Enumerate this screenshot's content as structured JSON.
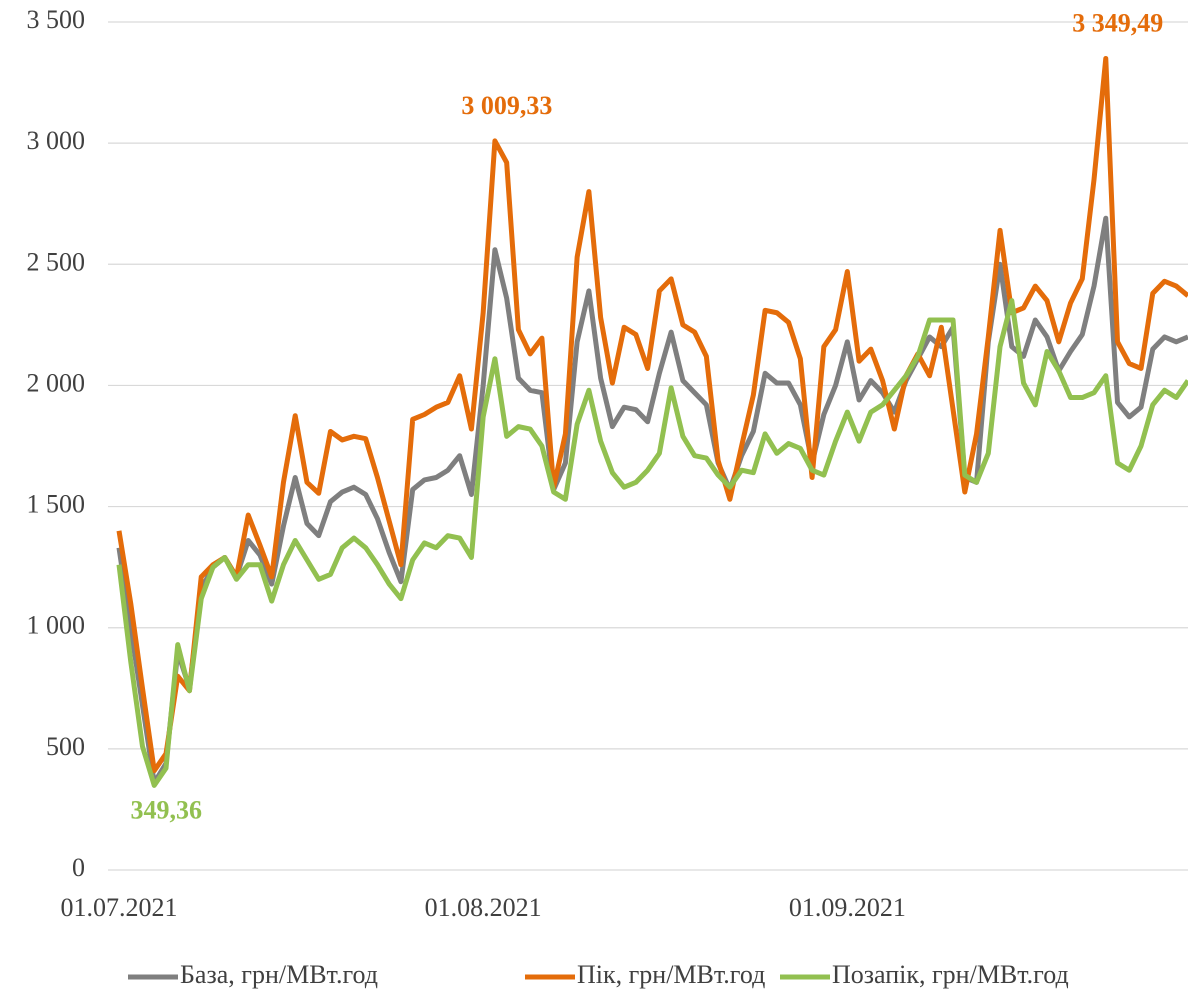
{
  "chart_data": {
    "type": "line",
    "categories": [
      "01.07.2021",
      null,
      null,
      null,
      null,
      null,
      null,
      null,
      null,
      null,
      null,
      null,
      null,
      null,
      null,
      null,
      null,
      null,
      null,
      null,
      null,
      null,
      null,
      null,
      null,
      null,
      null,
      null,
      null,
      null,
      null,
      "01.08.2021",
      null,
      null,
      null,
      null,
      null,
      null,
      null,
      null,
      null,
      null,
      null,
      null,
      null,
      null,
      null,
      null,
      null,
      null,
      null,
      null,
      null,
      null,
      null,
      null,
      null,
      null,
      null,
      null,
      null,
      null,
      "01.09.2021",
      null,
      null,
      null,
      null,
      null,
      null,
      null,
      null,
      null,
      null,
      null,
      null,
      null,
      null,
      null,
      null,
      null,
      null,
      null,
      null,
      null,
      null,
      null,
      null,
      null,
      null,
      null,
      null,
      null
    ],
    "series": [
      {
        "name": "База, грн/МВт.год",
        "color": "#7f7f7f",
        "values": [
          1330,
          1000,
          680,
          360,
          440,
          900,
          750,
          1160,
          1250,
          1290,
          1210,
          1360,
          1300,
          1180,
          1420,
          1620,
          1430,
          1380,
          1520,
          1560,
          1580,
          1550,
          1450,
          1310,
          1190,
          1570,
          1610,
          1620,
          1650,
          1710,
          1550,
          2000,
          2560,
          2360,
          2030,
          1980,
          1970,
          1570,
          1680,
          2180,
          2390,
          2030,
          1830,
          1910,
          1900,
          1850,
          2050,
          2220,
          2020,
          1970,
          1920,
          1680,
          1570,
          1710,
          1810,
          2050,
          2010,
          2010,
          1920,
          1680,
          1880,
          2000,
          2180,
          1940,
          2020,
          1970,
          1890,
          2020,
          2110,
          2200,
          2160,
          2240,
          1620,
          1600,
          2180,
          2500,
          2160,
          2120,
          2270,
          2200,
          2060,
          2140,
          2210,
          2410,
          2690,
          1930,
          1870,
          1910,
          2150,
          2200,
          2180,
          2200
        ]
      },
      {
        "name": "Пік, грн/МВт.год",
        "color": "#e46c0a",
        "values": [
          1400,
          1100,
          750,
          410,
          480,
          800,
          740,
          1210,
          1260,
          1290,
          1210,
          1465,
          1340,
          1210,
          1600,
          1875,
          1600,
          1555,
          1810,
          1775,
          1790,
          1780,
          1620,
          1440,
          1260,
          1860,
          1880,
          1910,
          1930,
          2040,
          1820,
          2300,
          3009.33,
          2920,
          2230,
          2130,
          2195,
          1580,
          1800,
          2530,
          2800,
          2280,
          2010,
          2240,
          2210,
          2070,
          2390,
          2440,
          2250,
          2220,
          2120,
          1690,
          1530,
          1750,
          1960,
          2310,
          2300,
          2260,
          2110,
          1620,
          2160,
          2230,
          2470,
          2100,
          2150,
          2020,
          1820,
          2040,
          2130,
          2040,
          2240,
          1900,
          1560,
          1800,
          2200,
          2640,
          2300,
          2320,
          2410,
          2350,
          2180,
          2340,
          2440,
          2850,
          3349.49,
          2180,
          2090,
          2070,
          2380,
          2430,
          2410,
          2370
        ],
        "value_labels": [
          null,
          null,
          null,
          null,
          null,
          null,
          null,
          null,
          null,
          null,
          null,
          null,
          null,
          null,
          null,
          null,
          null,
          null,
          null,
          null,
          null,
          null,
          null,
          null,
          null,
          null,
          null,
          null,
          null,
          null,
          null,
          null,
          "3 009,33",
          null,
          null,
          null,
          null,
          null,
          null,
          null,
          null,
          null,
          null,
          null,
          null,
          null,
          null,
          null,
          null,
          null,
          null,
          null,
          null,
          null,
          null,
          null,
          null,
          null,
          null,
          null,
          null,
          null,
          null,
          null,
          null,
          null,
          null,
          null,
          null,
          null,
          null,
          null,
          null,
          null,
          null,
          null,
          null,
          null,
          null,
          null,
          null,
          null,
          null,
          null,
          "3 349,49",
          null,
          null,
          null,
          null,
          null,
          null,
          null
        ]
      },
      {
        "name": "Позапік, грн/МВт.год",
        "color": "#92c050",
        "values": [
          1260,
          860,
          510,
          349.36,
          420,
          930,
          740,
          1120,
          1250,
          1290,
          1200,
          1260,
          1260,
          1110,
          1260,
          1360,
          1280,
          1200,
          1220,
          1330,
          1370,
          1330,
          1260,
          1180,
          1120,
          1280,
          1350,
          1330,
          1380,
          1370,
          1290,
          1870,
          2110,
          1790,
          1830,
          1820,
          1750,
          1560,
          1530,
          1840,
          1980,
          1770,
          1640,
          1580,
          1600,
          1650,
          1720,
          1990,
          1790,
          1710,
          1700,
          1630,
          1580,
          1650,
          1640,
          1800,
          1720,
          1760,
          1740,
          1650,
          1630,
          1770,
          1890,
          1770,
          1890,
          1920,
          1980,
          2040,
          2120,
          2270,
          2270,
          2270,
          1630,
          1600,
          1720,
          2160,
          2350,
          2010,
          1920,
          2140,
          2060,
          1950,
          1950,
          1970,
          2040,
          1680,
          1650,
          1750,
          1920,
          1980,
          1950,
          2020
        ],
        "value_labels": [
          null,
          null,
          null,
          "349,36",
          null,
          null,
          null,
          null,
          null,
          null,
          null,
          null,
          null,
          null,
          null,
          null,
          null,
          null,
          null,
          null,
          null,
          null,
          null,
          null,
          null,
          null,
          null,
          null,
          null,
          null,
          null,
          null,
          null,
          null,
          null,
          null,
          null,
          null,
          null,
          null,
          null,
          null,
          null,
          null,
          null,
          null,
          null,
          null,
          null,
          null,
          null,
          null,
          null,
          null,
          null,
          null,
          null,
          null,
          null,
          null,
          null,
          null,
          null,
          null,
          null,
          null,
          null,
          null,
          null,
          null,
          null,
          null,
          null,
          null,
          null,
          null,
          null,
          null,
          null,
          null,
          null,
          null,
          null,
          null,
          null,
          null,
          null,
          null,
          null,
          null,
          null,
          null
        ]
      }
    ],
    "ylim": [
      0,
      3500
    ],
    "yticks": [
      0,
      500,
      {
        "value": 1000,
        "label": "1 000"
      },
      {
        "value": 1500,
        "label": "1 500"
      },
      {
        "value": 2000,
        "label": "2 000"
      },
      {
        "value": 2500,
        "label": "2 500"
      },
      {
        "value": 3000,
        "label": "3 000"
      },
      {
        "value": 3500,
        "label": "3 500"
      }
    ],
    "grid": true,
    "legend": "bottom"
  }
}
